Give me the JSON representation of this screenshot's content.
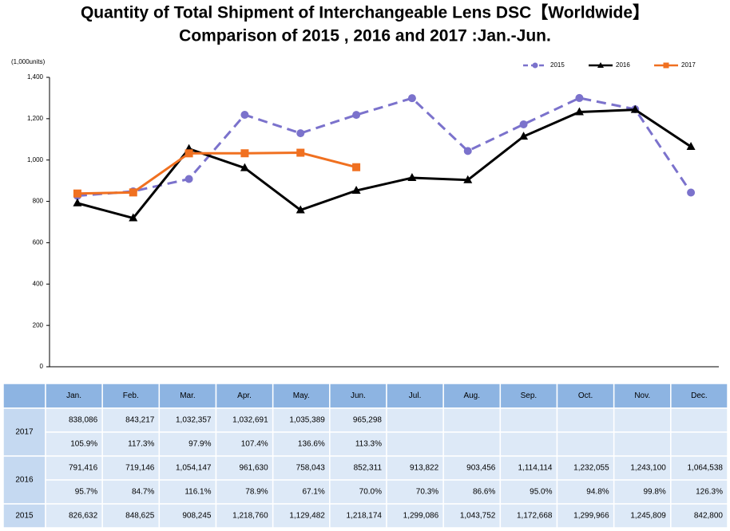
{
  "chart_data": {
    "type": "line",
    "title": "Quantity of Total Shipment of Interchangeable Lens DSC【Worldwide】",
    "subtitle": "Comparison of 2015 , 2016 and 2017 :Jan.-Jun.",
    "y_label": "(1,000units)",
    "categories": [
      "Jan.",
      "Feb.",
      "Mar.",
      "Apr.",
      "May.",
      "Jun.",
      "Jul.",
      "Aug.",
      "Sep.",
      "Oct.",
      "Nov.",
      "Dec."
    ],
    "ylim": [
      0,
      1400
    ],
    "yticks": [
      0,
      200,
      400,
      600,
      800,
      {
        "value": 1000,
        "label": "1,000"
      },
      {
        "value": 1200,
        "label": "1,200"
      },
      {
        "value": 1400,
        "label": "1,400"
      }
    ],
    "grid": false,
    "legend": "top-right",
    "series": [
      {
        "name": "2015",
        "color": "#7b72cc",
        "dash": true,
        "marker": "circle",
        "values": [
          826.632,
          848.625,
          908.245,
          1218.76,
          1129.482,
          1218.174,
          1299.086,
          1043.752,
          1172.668,
          1299.966,
          1245.809,
          842.8
        ],
        "value_labels": [
          "826,632",
          "848,625",
          "908,245",
          "1,218,760",
          "1,129,482",
          "1,218,174",
          "1,299,086",
          "1,043,752",
          "1,172,668",
          "1,299,966",
          "1,245,809",
          "842,800"
        ]
      },
      {
        "name": "2016",
        "color": "#000000",
        "dash": false,
        "marker": "triangle",
        "values": [
          791.416,
          719.146,
          1054.147,
          961.63,
          758.043,
          852.311,
          913.822,
          903.456,
          1114.114,
          1232.055,
          1243.1,
          1064.538
        ],
        "value_labels": [
          "791,416",
          "719,146",
          "1,054,147",
          "961,630",
          "758,043",
          "852,311",
          "913,822",
          "903,456",
          "1,114,114",
          "1,232,055",
          "1,243,100",
          "1,064,538"
        ],
        "yoy": [
          "95.7%",
          "84.7%",
          "116.1%",
          "78.9%",
          "67.1%",
          "70.0%",
          "70.3%",
          "86.6%",
          "95.0%",
          "94.8%",
          "99.8%",
          "126.3%"
        ]
      },
      {
        "name": "2017",
        "color": "#f07020",
        "dash": false,
        "marker": "square",
        "values": [
          838.086,
          843.217,
          1032.357,
          1032.691,
          1035.389,
          965.298,
          null,
          null,
          null,
          null,
          null,
          null
        ],
        "value_labels": [
          "838,086",
          "843,217",
          "1,032,357",
          "1,032,691",
          "1,035,389",
          "965,298",
          null,
          null,
          null,
          null,
          null,
          null
        ],
        "yoy": [
          "105.9%",
          "117.3%",
          "97.9%",
          "107.4%",
          "136.6%",
          "113.3%",
          null,
          null,
          null,
          null,
          null,
          null
        ]
      }
    ]
  }
}
